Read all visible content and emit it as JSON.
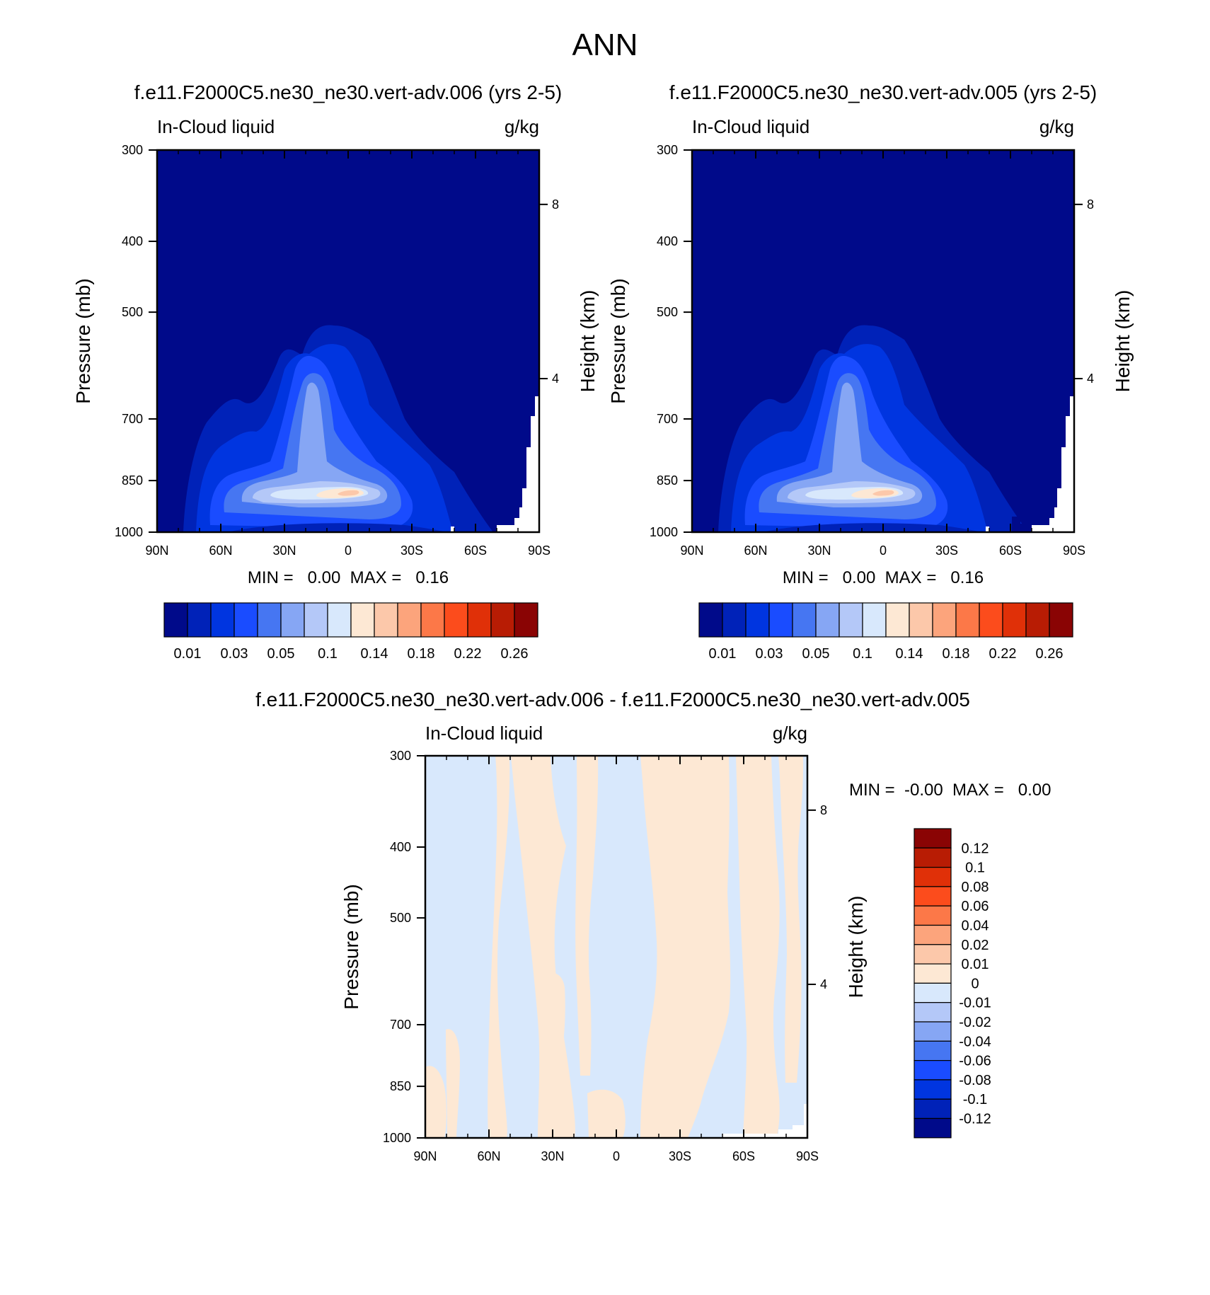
{
  "page": {
    "title": "ANN"
  },
  "colors": {
    "contour_levels_abs": [
      "#000a8a",
      "#0022b8",
      "#0035e0",
      "#1a4cff",
      "#4676f2",
      "#86a6f4",
      "#b4c8f8",
      "#d8e8fc",
      "#fde8d4",
      "#fcc8aa",
      "#fca47c",
      "#fc7848",
      "#fc4c1c",
      "#e03008",
      "#b81c04",
      "#8a0404"
    ],
    "contour_levels_diff": [
      "#000a8a",
      "#0022b8",
      "#0035e0",
      "#1a4cff",
      "#4676f2",
      "#86a6f4",
      "#b4c8f8",
      "#d8e8fc",
      "#fde8d4",
      "#fcc8aa",
      "#fca47c",
      "#fc7848",
      "#fc4c1c",
      "#e03008",
      "#b81c04",
      "#8a0404"
    ]
  },
  "chart_data": [
    {
      "type": "heatmap",
      "title": "f.e11.F2000C5.ne30_ne30.vert-adv.006 (yrs 2-5)",
      "left_label": "In-Cloud liquid",
      "right_label": "g/kg",
      "xlabel": "",
      "ylabel": "Pressure (mb)",
      "y2label": "Height (km)",
      "x_ticks": [
        "90N",
        "60N",
        "30N",
        "0",
        "30S",
        "60S",
        "90S"
      ],
      "y_ticks": [
        "300",
        "400",
        "500",
        "700",
        "850",
        "1000"
      ],
      "y_tick_values": [
        300,
        400,
        500,
        700,
        850,
        1000
      ],
      "y2_ticks": [
        "8",
        "4"
      ],
      "y2_tick_values": [
        8,
        4
      ],
      "x_range": [
        90,
        -90
      ],
      "y_range": [
        300,
        1000
      ],
      "stats": "MIN =   0.00  MAX =   0.16",
      "colorbar_labels": [
        "0.01",
        "0.03",
        "0.05",
        "0.1",
        "0.14",
        "0.18",
        "0.22",
        "0.26"
      ]
    },
    {
      "type": "heatmap",
      "title": "f.e11.F2000C5.ne30_ne30.vert-adv.005 (yrs 2-5)",
      "left_label": "In-Cloud liquid",
      "right_label": "g/kg",
      "xlabel": "",
      "ylabel": "Pressure (mb)",
      "y2label": "Height (km)",
      "x_ticks": [
        "90N",
        "60N",
        "30N",
        "0",
        "30S",
        "60S",
        "90S"
      ],
      "y_ticks": [
        "300",
        "400",
        "500",
        "700",
        "850",
        "1000"
      ],
      "y_tick_values": [
        300,
        400,
        500,
        700,
        850,
        1000
      ],
      "y2_ticks": [
        "8",
        "4"
      ],
      "y2_tick_values": [
        8,
        4
      ],
      "x_range": [
        90,
        -90
      ],
      "y_range": [
        300,
        1000
      ],
      "stats": "MIN =   0.00  MAX =   0.16",
      "colorbar_labels": [
        "0.01",
        "0.03",
        "0.05",
        "0.1",
        "0.14",
        "0.18",
        "0.22",
        "0.26"
      ]
    },
    {
      "type": "heatmap",
      "title": "f.e11.F2000C5.ne30_ne30.vert-adv.006 - f.e11.F2000C5.ne30_ne30.vert-adv.005",
      "left_label": "In-Cloud liquid",
      "right_label": "g/kg",
      "xlabel": "",
      "ylabel": "Pressure (mb)",
      "y2label": "Height (km)",
      "x_ticks": [
        "90N",
        "60N",
        "30N",
        "0",
        "30S",
        "60S",
        "90S"
      ],
      "y_ticks": [
        "300",
        "400",
        "500",
        "700",
        "850",
        "1000"
      ],
      "y_tick_values": [
        300,
        400,
        500,
        700,
        850,
        1000
      ],
      "y2_ticks": [
        "8",
        "4"
      ],
      "y2_tick_values": [
        8,
        4
      ],
      "x_range": [
        90,
        -90
      ],
      "y_range": [
        300,
        1000
      ],
      "stats": "MIN =  -0.00  MAX =   0.00",
      "colorbar_labels": [
        "0.12",
        "0.1",
        "0.08",
        "0.06",
        "0.04",
        "0.02",
        "0.01",
        "0",
        "-0.01",
        "-0.02",
        "-0.04",
        "-0.06",
        "-0.08",
        "-0.1",
        "-0.12"
      ]
    }
  ]
}
